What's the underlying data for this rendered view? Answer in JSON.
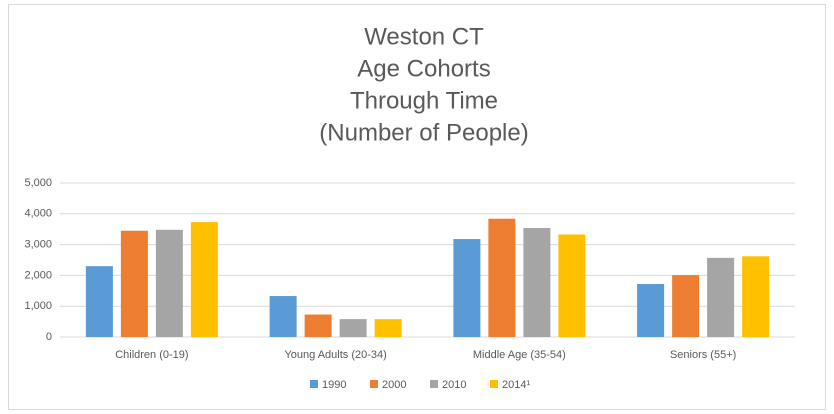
{
  "chart_data": {
    "type": "bar",
    "title": [
      "Weston CT",
      "Age Cohorts",
      "Through Time",
      "(Number of People)"
    ],
    "categories": [
      "Children (0-19)",
      "Young Adults (20-34)",
      "Middle Age (35-54)",
      "Seniors (55+)"
    ],
    "series": [
      {
        "name": "1990",
        "color": "#5b9bd5",
        "values": [
          2300,
          1330,
          3180,
          1720
        ]
      },
      {
        "name": "2000",
        "color": "#ed7d31",
        "values": [
          3450,
          730,
          3840,
          2010
        ]
      },
      {
        "name": "2010",
        "color": "#a5a5a5",
        "values": [
          3480,
          580,
          3540,
          2570
        ]
      },
      {
        "name": "2014¹",
        "color": "#ffc000",
        "values": [
          3730,
          580,
          3330,
          2620
        ]
      }
    ],
    "ylim": [
      0,
      5000
    ],
    "yticks": [
      0,
      {
        "value": 1000,
        "label": "1,000"
      },
      {
        "value": 2000,
        "label": "2,000"
      },
      {
        "value": 3000,
        "label": "3,000"
      },
      {
        "value": 4000,
        "label": "4,000"
      },
      {
        "value": 5000,
        "label": "5,000"
      }
    ],
    "grid": true,
    "legend": "bottom"
  }
}
